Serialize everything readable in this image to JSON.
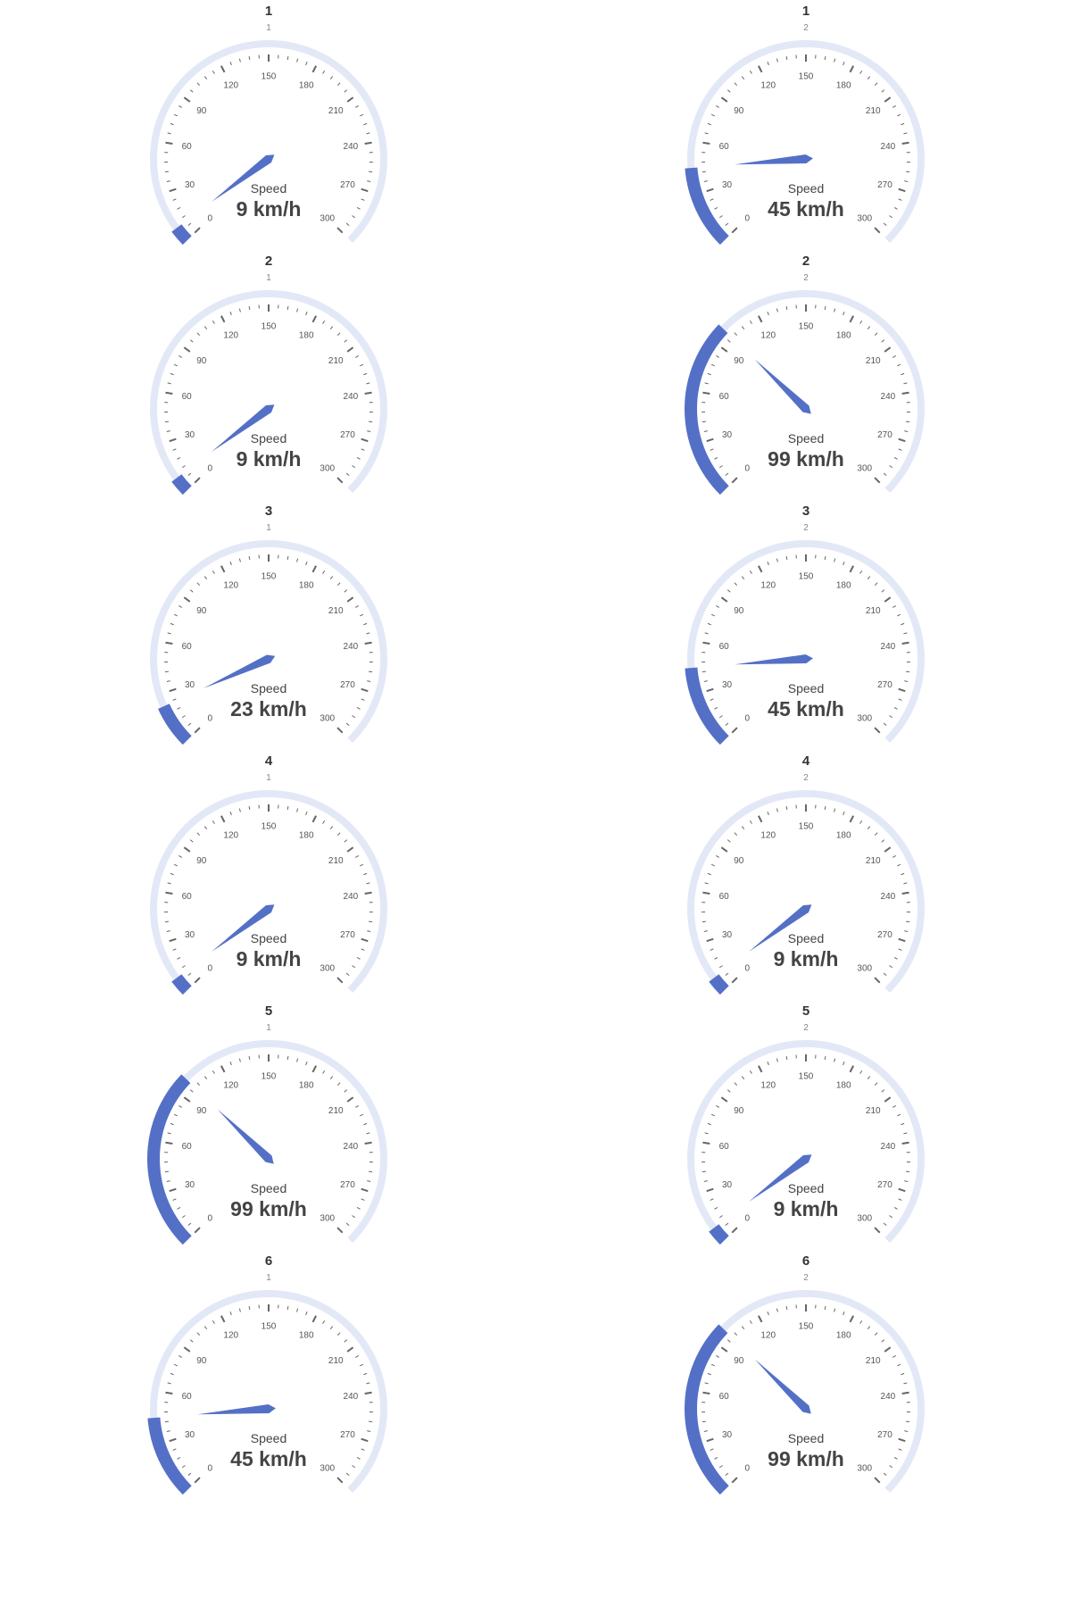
{
  "colors": {
    "track": "#e3e8f7",
    "progress": "#5470c6",
    "pointer": "#5470c6",
    "tick": "#666666"
  },
  "chart_data": {
    "type": "gauge",
    "min": 0,
    "max": 300,
    "tick_labels": [
      "0",
      "30",
      "60",
      "90",
      "120",
      "150",
      "180",
      "210",
      "240",
      "270",
      "300"
    ],
    "label": "Speed",
    "unit": "km/h",
    "gauges": [
      {
        "title": "1",
        "subtitle": "1",
        "value": 9,
        "display": "9 km/h"
      },
      {
        "title": "1",
        "subtitle": "2",
        "value": 45,
        "display": "45 km/h"
      },
      {
        "title": "2",
        "subtitle": "1",
        "value": 9,
        "display": "9 km/h"
      },
      {
        "title": "2",
        "subtitle": "2",
        "value": 99,
        "display": "99 km/h"
      },
      {
        "title": "3",
        "subtitle": "1",
        "value": 23,
        "display": "23 km/h"
      },
      {
        "title": "3",
        "subtitle": "2",
        "value": 45,
        "display": "45 km/h"
      },
      {
        "title": "4",
        "subtitle": "1",
        "value": 9,
        "display": "9 km/h"
      },
      {
        "title": "4",
        "subtitle": "2",
        "value": 9,
        "display": "9 km/h"
      },
      {
        "title": "5",
        "subtitle": "1",
        "value": 99,
        "display": "99 km/h"
      },
      {
        "title": "5",
        "subtitle": "2",
        "value": 9,
        "display": "9 km/h"
      },
      {
        "title": "6",
        "subtitle": "1",
        "value": 45,
        "display": "45 km/h"
      },
      {
        "title": "6",
        "subtitle": "2",
        "value": 99,
        "display": "99 km/h"
      }
    ]
  }
}
